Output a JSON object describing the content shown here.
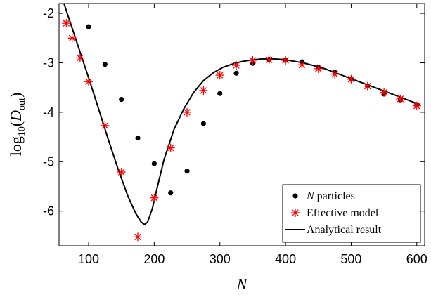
{
  "chart_data": {
    "type": "line",
    "title": "",
    "xlabel": "N",
    "ylabel": {
      "prefix": "log",
      "sub": "10",
      "open": "(",
      "var": "D",
      "var_sub": "out",
      "close": ")"
    },
    "xlim": [
      55,
      612
    ],
    "ylim": [
      -6.7,
      -1.8
    ],
    "xticks": [
      100,
      200,
      300,
      400,
      500,
      600
    ],
    "yticks": [
      -6,
      -5,
      -4,
      -3,
      -2
    ],
    "grid": false,
    "legend_position": "bottom-right",
    "series": [
      {
        "name": "N particles",
        "legend_label": {
          "italic": "N",
          "rest": " particles"
        },
        "marker": "dot",
        "color": "#000000",
        "x": [
          100,
          125,
          150,
          175,
          200,
          225,
          250,
          275,
          300,
          325,
          350,
          375,
          400,
          425,
          450,
          475,
          500,
          525,
          550,
          575,
          600
        ],
        "y": [
          -2.27,
          -3.03,
          -3.74,
          -4.52,
          -5.04,
          -5.63,
          -5.19,
          -4.23,
          -3.62,
          -3.21,
          -3.01,
          -2.93,
          -2.95,
          -2.98,
          -3.09,
          -3.19,
          -3.33,
          -3.47,
          -3.63,
          -3.75,
          -3.85
        ]
      },
      {
        "name": "Effective model",
        "legend_label": {
          "italic": "",
          "rest": "Effective model"
        },
        "marker": "star",
        "color": "#ff0000",
        "x": [
          66,
          75,
          87,
          100,
          125,
          150,
          175,
          200,
          225,
          250,
          275,
          300,
          325,
          350,
          375,
          400,
          425,
          450,
          475,
          500,
          525,
          550,
          575,
          600
        ],
        "y": [
          -2.2,
          -2.5,
          -2.9,
          -3.38,
          -4.27,
          -5.21,
          -6.52,
          -5.73,
          -4.72,
          -4.0,
          -3.56,
          -3.25,
          -3.05,
          -2.95,
          -2.94,
          -2.95,
          -3.04,
          -3.12,
          -3.23,
          -3.33,
          -3.47,
          -3.6,
          -3.73,
          -3.87
        ]
      },
      {
        "name": "Analytical result",
        "legend_label": {
          "italic": "",
          "rest": "Analytical result"
        },
        "marker": "line",
        "color": "#000000",
        "x": [
          55,
          70,
          85,
          100,
          115,
          130,
          145,
          160,
          172,
          180,
          185,
          190,
          197,
          205,
          215,
          230,
          245,
          260,
          275,
          290,
          305,
          320,
          335,
          350,
          365,
          380,
          395,
          410,
          430,
          460,
          490,
          520,
          550,
          580,
          605
        ],
        "y": [
          -1.5,
          -2.1,
          -2.7,
          -3.3,
          -3.92,
          -4.55,
          -5.15,
          -5.7,
          -6.05,
          -6.22,
          -6.27,
          -6.22,
          -5.95,
          -5.5,
          -4.95,
          -4.35,
          -3.93,
          -3.6,
          -3.36,
          -3.2,
          -3.09,
          -3.02,
          -2.97,
          -2.94,
          -2.92,
          -2.92,
          -2.93,
          -2.96,
          -3.01,
          -3.12,
          -3.27,
          -3.42,
          -3.57,
          -3.72,
          -3.85
        ]
      }
    ]
  }
}
